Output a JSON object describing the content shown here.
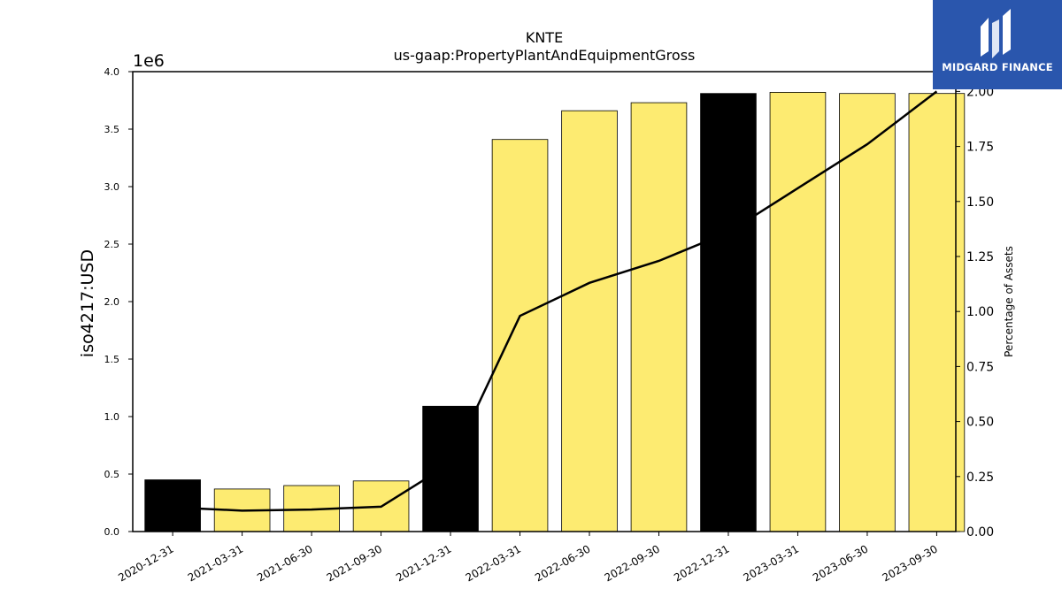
{
  "logo": {
    "text": "MIDGARD FINANCE",
    "bg_color": "#2a56ad"
  },
  "chart_data": {
    "type": "bar",
    "title": "KNTE",
    "subtitle": "us-gaap:PropertyPlantAndEquipmentGross",
    "ylabel": "iso4217:USD",
    "y2label": "Percentage of Assets",
    "offset_label": "1e6",
    "categories": [
      "2020-12-31",
      "2021-03-31",
      "2021-06-30",
      "2021-09-30",
      "2021-12-31",
      "2022-03-31",
      "2022-06-30",
      "2022-09-30",
      "2022-12-31",
      "2023-03-31",
      "2023-06-30",
      "2023-09-30"
    ],
    "values": [
      450000,
      370000,
      400000,
      440000,
      1090000,
      3410000,
      3660000,
      3730000,
      3810000,
      3820000,
      3810000,
      3810000
    ],
    "bar_colors": [
      "#000000",
      "#fdeb71",
      "#fdeb71",
      "#fdeb71",
      "#000000",
      "#fdeb71",
      "#fdeb71",
      "#fdeb71",
      "#000000",
      "#fdeb71",
      "#fdeb71",
      "#fdeb71"
    ],
    "line_series": {
      "axis": "right",
      "color": "#000000",
      "values": [
        0.11,
        0.095,
        0.1,
        0.113,
        0.31,
        0.98,
        1.13,
        1.23,
        1.36,
        1.56,
        1.76,
        2.0
      ]
    },
    "ylim": [
      0,
      4000000
    ],
    "yticks": [
      0,
      500000,
      1000000,
      1500000,
      2000000,
      2500000,
      3000000,
      3500000,
      4000000
    ],
    "ytick_labels": [
      "0.0",
      "0.5",
      "1.0",
      "1.5",
      "2.0",
      "2.5",
      "3.0",
      "3.5",
      "4.0"
    ],
    "y2lim": [
      0,
      2.09
    ],
    "y2ticks": [
      0,
      0.25,
      0.5,
      0.75,
      1.0,
      1.25,
      1.5,
      1.75,
      2.0
    ],
    "y2tick_labels": [
      "0.00",
      "0.25",
      "0.50",
      "0.75",
      "1.00",
      "1.25",
      "1.50",
      "1.75",
      "2.00"
    ],
    "grid": false
  }
}
